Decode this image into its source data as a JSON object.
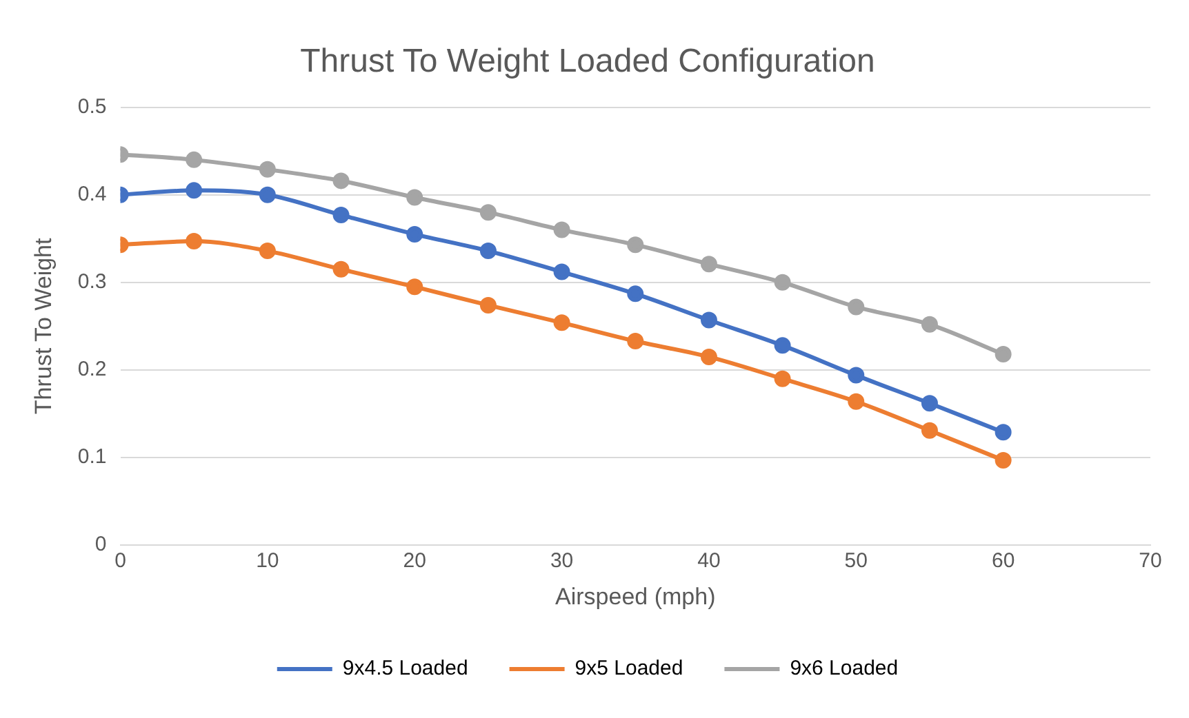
{
  "chart_data": {
    "type": "line",
    "title": "Thrust To Weight Loaded Configuration",
    "xlabel": "Airspeed (mph)",
    "ylabel": "Thrust To Weight",
    "x": [
      0,
      5,
      10,
      15,
      20,
      25,
      30,
      35,
      40,
      45,
      50,
      55,
      60
    ],
    "series": [
      {
        "name": "9x4.5 Loaded",
        "color": "#4472c4",
        "values": [
          0.4,
          0.405,
          0.4,
          0.377,
          0.355,
          0.336,
          0.312,
          0.287,
          0.257,
          0.228,
          0.194,
          0.162,
          0.129
        ]
      },
      {
        "name": "9x5 Loaded",
        "color": "#ed7d31",
        "values": [
          0.343,
          0.347,
          0.336,
          0.315,
          0.295,
          0.274,
          0.254,
          0.233,
          0.215,
          0.19,
          0.164,
          0.131,
          0.097
        ]
      },
      {
        "name": "9x6 Loaded",
        "color": "#a5a5a5",
        "values": [
          0.446,
          0.44,
          0.429,
          0.416,
          0.397,
          0.38,
          0.36,
          0.343,
          0.321,
          0.3,
          0.272,
          0.252,
          0.218
        ]
      }
    ],
    "xlim": [
      0,
      70
    ],
    "xticks": [
      0,
      10,
      20,
      30,
      40,
      50,
      60,
      70
    ],
    "ylim": [
      0,
      0.5
    ],
    "yticks": [
      0,
      0.1,
      0.2,
      0.3,
      0.4,
      0.5
    ],
    "grid": "y",
    "legend": "bottom",
    "marker": "circle",
    "line_style": "solid"
  }
}
